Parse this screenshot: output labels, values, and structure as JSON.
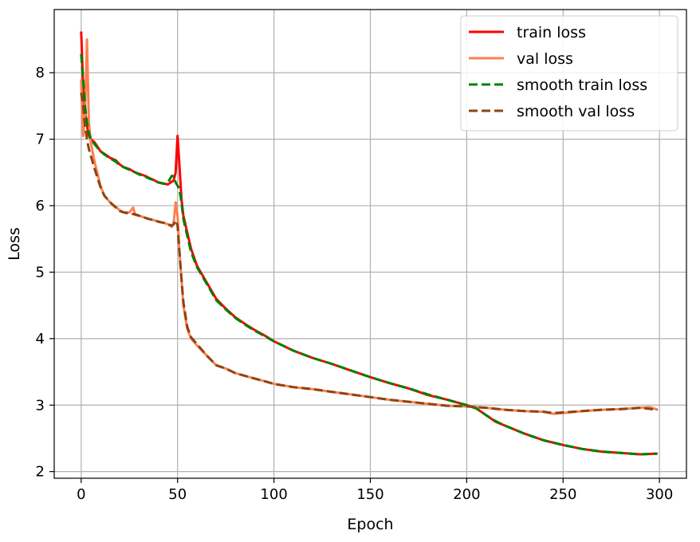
{
  "chart_data": {
    "type": "line",
    "title": "",
    "xlabel": "Epoch",
    "ylabel": "Loss",
    "xlim": [
      -14,
      314
    ],
    "ylim": [
      1.9,
      8.95
    ],
    "xticks": [
      0,
      50,
      100,
      150,
      200,
      250,
      300
    ],
    "xtick_labels": [
      "0",
      "50",
      "100",
      "150",
      "200",
      "250",
      "300"
    ],
    "yticks": [
      2,
      3,
      4,
      5,
      6,
      7,
      8
    ],
    "ytick_labels": [
      "2",
      "3",
      "4",
      "5",
      "6",
      "7",
      "8"
    ],
    "grid": true,
    "legend_position": "top-right",
    "series": [
      {
        "name": "train loss",
        "color": "#ff0000",
        "dash": "solid",
        "points": [
          [
            0,
            8.62
          ],
          [
            1,
            7.8
          ],
          [
            2,
            7.4
          ],
          [
            3,
            7.2
          ],
          [
            4,
            7.05
          ],
          [
            5,
            7.0
          ],
          [
            7,
            6.95
          ],
          [
            10,
            6.82
          ],
          [
            12,
            6.78
          ],
          [
            15,
            6.72
          ],
          [
            18,
            6.68
          ],
          [
            20,
            6.62
          ],
          [
            22,
            6.58
          ],
          [
            25,
            6.55
          ],
          [
            28,
            6.5
          ],
          [
            30,
            6.48
          ],
          [
            33,
            6.45
          ],
          [
            35,
            6.42
          ],
          [
            38,
            6.38
          ],
          [
            40,
            6.35
          ],
          [
            43,
            6.33
          ],
          [
            45,
            6.32
          ],
          [
            47,
            6.36
          ],
          [
            48,
            6.38
          ],
          [
            49,
            6.5
          ],
          [
            50,
            7.05
          ],
          [
            51,
            6.6
          ],
          [
            52,
            6.1
          ],
          [
            53,
            5.85
          ],
          [
            55,
            5.6
          ],
          [
            57,
            5.35
          ],
          [
            60,
            5.1
          ],
          [
            65,
            4.85
          ],
          [
            70,
            4.6
          ],
          [
            75,
            4.45
          ],
          [
            80,
            4.32
          ],
          [
            85,
            4.22
          ],
          [
            90,
            4.13
          ],
          [
            95,
            4.05
          ],
          [
            100,
            3.96
          ],
          [
            110,
            3.82
          ],
          [
            120,
            3.71
          ],
          [
            130,
            3.62
          ],
          [
            140,
            3.52
          ],
          [
            150,
            3.42
          ],
          [
            160,
            3.33
          ],
          [
            170,
            3.25
          ],
          [
            180,
            3.15
          ],
          [
            190,
            3.08
          ],
          [
            200,
            3.0
          ],
          [
            205,
            2.95
          ],
          [
            210,
            2.85
          ],
          [
            215,
            2.75
          ],
          [
            220,
            2.69
          ],
          [
            230,
            2.57
          ],
          [
            240,
            2.47
          ],
          [
            250,
            2.4
          ],
          [
            260,
            2.34
          ],
          [
            270,
            2.3
          ],
          [
            280,
            2.28
          ],
          [
            290,
            2.26
          ],
          [
            299,
            2.27
          ]
        ]
      },
      {
        "name": "val loss",
        "color": "#ff7f50",
        "dash": "solid",
        "points": [
          [
            0,
            7.9
          ],
          [
            1,
            7.05
          ],
          [
            2,
            7.4
          ],
          [
            3,
            8.5
          ],
          [
            4,
            7.25
          ],
          [
            5,
            6.95
          ],
          [
            7,
            6.65
          ],
          [
            10,
            6.3
          ],
          [
            12,
            6.15
          ],
          [
            15,
            6.05
          ],
          [
            18,
            5.98
          ],
          [
            20,
            5.93
          ],
          [
            22,
            5.9
          ],
          [
            25,
            5.9
          ],
          [
            27,
            5.97
          ],
          [
            28,
            5.86
          ],
          [
            30,
            5.85
          ],
          [
            33,
            5.82
          ],
          [
            35,
            5.8
          ],
          [
            38,
            5.78
          ],
          [
            40,
            5.76
          ],
          [
            43,
            5.74
          ],
          [
            45,
            5.72
          ],
          [
            47,
            5.68
          ],
          [
            48,
            5.75
          ],
          [
            49,
            6.05
          ],
          [
            50,
            5.85
          ],
          [
            51,
            5.3
          ],
          [
            52,
            4.9
          ],
          [
            53,
            4.5
          ],
          [
            55,
            4.15
          ],
          [
            57,
            4.0
          ],
          [
            60,
            3.9
          ],
          [
            65,
            3.75
          ],
          [
            70,
            3.6
          ],
          [
            75,
            3.55
          ],
          [
            80,
            3.48
          ],
          [
            85,
            3.44
          ],
          [
            90,
            3.4
          ],
          [
            95,
            3.36
          ],
          [
            100,
            3.32
          ],
          [
            110,
            3.27
          ],
          [
            120,
            3.24
          ],
          [
            130,
            3.2
          ],
          [
            140,
            3.16
          ],
          [
            150,
            3.12
          ],
          [
            160,
            3.08
          ],
          [
            170,
            3.05
          ],
          [
            180,
            3.02
          ],
          [
            190,
            2.99
          ],
          [
            200,
            2.98
          ],
          [
            210,
            2.96
          ],
          [
            220,
            2.93
          ],
          [
            230,
            2.91
          ],
          [
            240,
            2.9
          ],
          [
            245,
            2.87
          ],
          [
            250,
            2.88
          ],
          [
            260,
            2.91
          ],
          [
            270,
            2.93
          ],
          [
            280,
            2.94
          ],
          [
            290,
            2.96
          ],
          [
            295,
            2.97
          ],
          [
            299,
            2.93
          ]
        ]
      },
      {
        "name": "smooth train loss",
        "color": "#008000",
        "dash": "dashed",
        "points": [
          [
            0,
            8.28
          ],
          [
            1,
            7.9
          ],
          [
            2,
            7.5
          ],
          [
            3,
            7.25
          ],
          [
            4,
            7.1
          ],
          [
            5,
            7.0
          ],
          [
            7,
            6.92
          ],
          [
            10,
            6.82
          ],
          [
            12,
            6.77
          ],
          [
            15,
            6.71
          ],
          [
            18,
            6.66
          ],
          [
            20,
            6.61
          ],
          [
            22,
            6.58
          ],
          [
            25,
            6.54
          ],
          [
            28,
            6.5
          ],
          [
            30,
            6.47
          ],
          [
            33,
            6.44
          ],
          [
            35,
            6.41
          ],
          [
            38,
            6.38
          ],
          [
            40,
            6.35
          ],
          [
            43,
            6.33
          ],
          [
            45,
            6.35
          ],
          [
            47,
            6.45
          ],
          [
            48,
            6.44
          ],
          [
            49,
            6.35
          ],
          [
            50,
            6.3
          ],
          [
            51,
            6.25
          ],
          [
            52,
            6.05
          ],
          [
            53,
            5.8
          ],
          [
            55,
            5.55
          ],
          [
            57,
            5.3
          ],
          [
            60,
            5.08
          ],
          [
            65,
            4.83
          ],
          [
            70,
            4.58
          ],
          [
            75,
            4.44
          ],
          [
            80,
            4.31
          ],
          [
            85,
            4.21
          ],
          [
            90,
            4.12
          ],
          [
            95,
            4.04
          ],
          [
            100,
            3.96
          ],
          [
            110,
            3.82
          ],
          [
            120,
            3.71
          ],
          [
            130,
            3.62
          ],
          [
            140,
            3.52
          ],
          [
            150,
            3.42
          ],
          [
            160,
            3.33
          ],
          [
            170,
            3.25
          ],
          [
            180,
            3.16
          ],
          [
            190,
            3.08
          ],
          [
            200,
            3.0
          ],
          [
            205,
            2.95
          ],
          [
            210,
            2.85
          ],
          [
            215,
            2.76
          ],
          [
            220,
            2.69
          ],
          [
            230,
            2.57
          ],
          [
            240,
            2.47
          ],
          [
            250,
            2.4
          ],
          [
            260,
            2.34
          ],
          [
            270,
            2.3
          ],
          [
            280,
            2.28
          ],
          [
            290,
            2.26
          ],
          [
            299,
            2.27
          ]
        ]
      },
      {
        "name": "smooth val loss",
        "color": "#8b4513",
        "dash": "dashed",
        "points": [
          [
            0,
            7.7
          ],
          [
            1,
            7.5
          ],
          [
            2,
            7.2
          ],
          [
            3,
            7.0
          ],
          [
            4,
            6.85
          ],
          [
            5,
            6.75
          ],
          [
            7,
            6.55
          ],
          [
            10,
            6.28
          ],
          [
            12,
            6.15
          ],
          [
            15,
            6.05
          ],
          [
            18,
            5.97
          ],
          [
            20,
            5.92
          ],
          [
            22,
            5.9
          ],
          [
            25,
            5.88
          ],
          [
            28,
            5.87
          ],
          [
            30,
            5.85
          ],
          [
            33,
            5.82
          ],
          [
            35,
            5.8
          ],
          [
            38,
            5.78
          ],
          [
            40,
            5.76
          ],
          [
            43,
            5.74
          ],
          [
            45,
            5.72
          ],
          [
            47,
            5.7
          ],
          [
            48,
            5.72
          ],
          [
            49,
            5.78
          ],
          [
            50,
            5.7
          ],
          [
            51,
            5.3
          ],
          [
            52,
            4.9
          ],
          [
            53,
            4.55
          ],
          [
            55,
            4.18
          ],
          [
            57,
            4.02
          ],
          [
            60,
            3.92
          ],
          [
            65,
            3.75
          ],
          [
            70,
            3.6
          ],
          [
            75,
            3.55
          ],
          [
            80,
            3.48
          ],
          [
            85,
            3.44
          ],
          [
            90,
            3.4
          ],
          [
            95,
            3.36
          ],
          [
            100,
            3.32
          ],
          [
            110,
            3.27
          ],
          [
            120,
            3.24
          ],
          [
            130,
            3.2
          ],
          [
            140,
            3.16
          ],
          [
            150,
            3.12
          ],
          [
            160,
            3.08
          ],
          [
            170,
            3.05
          ],
          [
            180,
            3.02
          ],
          [
            190,
            2.99
          ],
          [
            200,
            2.98
          ],
          [
            210,
            2.96
          ],
          [
            220,
            2.93
          ],
          [
            230,
            2.91
          ],
          [
            240,
            2.9
          ],
          [
            245,
            2.88
          ],
          [
            250,
            2.89
          ],
          [
            260,
            2.91
          ],
          [
            270,
            2.93
          ],
          [
            280,
            2.94
          ],
          [
            290,
            2.96
          ],
          [
            299,
            2.93
          ]
        ]
      }
    ]
  }
}
